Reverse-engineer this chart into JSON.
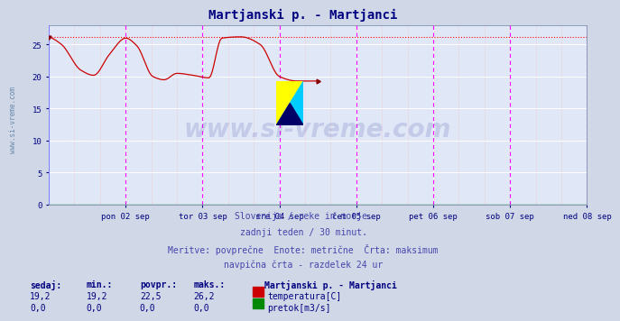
{
  "title": "Martjanski p. - Martjanci",
  "title_color": "#000080",
  "title_fontsize": 10,
  "bg_color": "#d0d8e8",
  "plot_bg_color": "#e0e8f8",
  "grid_color": "#ffffff",
  "grid_dotted_color": "#ffb0b0",
  "xlabel_color": "#000080",
  "ylabel_ticks": [
    0,
    5,
    10,
    15,
    20,
    25
  ],
  "ylim": [
    0,
    28
  ],
  "xmin": 0,
  "xmax": 336,
  "day_labels": [
    "pon 02 sep",
    "tor 03 sep",
    "sre 04 sep",
    "čet 05 sep",
    "pet 06 sep",
    "sob 07 sep",
    "ned 08 sep"
  ],
  "day_positions": [
    48,
    96,
    144,
    192,
    240,
    288,
    336
  ],
  "vline_color_day": "#ff00ff",
  "vline_color_midnight": "#8080ff",
  "hline_max_color": "#ff0000",
  "hline_max_y": 26.2,
  "temp_color": "#cc0000",
  "flow_color": "#008800",
  "watermark_text": "www.si-vreme.com",
  "watermark_color": "#000080",
  "watermark_alpha": 0.12,
  "footer_lines": [
    "Slovenija / reke in morje.",
    "zadnji teden / 30 minut.",
    "Meritve: povprečne  Enote: metrične  Črta: maksimum",
    "navpična črta - razdelek 24 ur"
  ],
  "footer_color": "#4444aa",
  "footer_fontsize": 7,
  "table_headers": [
    "sedaj:",
    "min.:",
    "povpr.:",
    "maks.:"
  ],
  "table_temp": [
    "19,2",
    "19,2",
    "22,5",
    "26,2"
  ],
  "table_flow": [
    "0,0",
    "0,0",
    "0,0",
    "0,0"
  ],
  "table_color": "#000080",
  "legend_title": "Martjanski p. - Martjanci",
  "legend_temp_label": "temperatura[C]",
  "legend_flow_label": "pretok[m3/s]",
  "sidebar_text": "www.si-vreme.com",
  "sidebar_color": "#6888aa"
}
